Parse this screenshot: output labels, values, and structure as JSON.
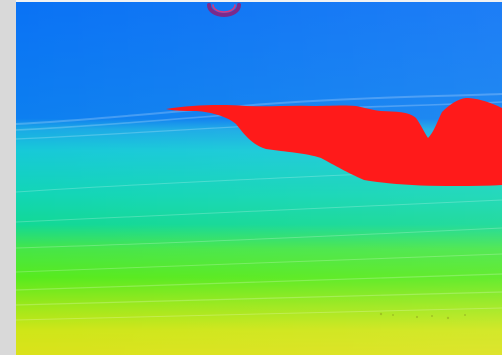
{
  "image": {
    "kind": "seismic-velocity-model",
    "palette": {
      "top": "#0a72f5",
      "upper": "#17c9d8",
      "mid": "#12d896",
      "green": "#57ea1e",
      "lower": "#b8ea14",
      "bottom": "#dbe21b",
      "anomaly": "#ff1a1a",
      "marker": "#7b2a8b"
    },
    "marker_icon": "semicircle-marker-icon"
  }
}
